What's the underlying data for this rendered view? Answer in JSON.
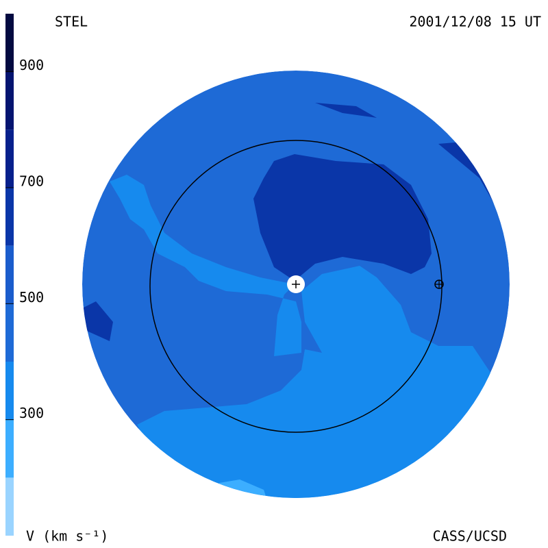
{
  "chart_data": {
    "type": "velocity-map",
    "title": "STEL",
    "timestamp": "2001/12/08 15 UT",
    "colorbar_label": "V (km s⁻¹)",
    "credit": "CASS/UCSD",
    "clim": [
      100,
      1000
    ],
    "cticks": [
      300,
      500,
      700,
      900
    ],
    "bands": [
      {
        "from": 100,
        "to": 200,
        "color": "#9ad4ff"
      },
      {
        "from": 200,
        "to": 300,
        "color": "#3caeff"
      },
      {
        "from": 300,
        "to": 400,
        "color": "#168aee"
      },
      {
        "from": 400,
        "to": 500,
        "color": "#1e6ad6"
      },
      {
        "from": 500,
        "to": 600,
        "color": "#1a5ccc"
      },
      {
        "from": 600,
        "to": 700,
        "color": "#0a36a8"
      },
      {
        "from": 700,
        "to": 800,
        "color": "#06208c"
      },
      {
        "from": 800,
        "to": 900,
        "color": "#041470"
      },
      {
        "from": 900,
        "to": 1000,
        "color": "#020a40"
      }
    ]
  }
}
